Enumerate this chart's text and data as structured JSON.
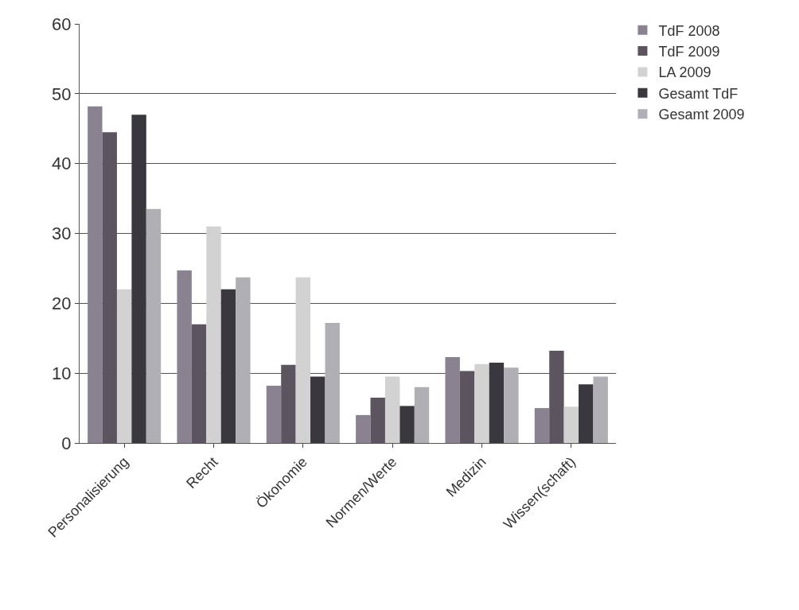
{
  "chart_data": {
    "type": "bar",
    "categories": [
      "Personalisierung",
      "Recht",
      "Ökonomie",
      "Normen/Werte",
      "Medizin",
      "Wissen(schaft)"
    ],
    "series": [
      {
        "name": "TdF 2008",
        "color": "#8a8290",
        "values": [
          48.2,
          24.7,
          8.2,
          4,
          12.3,
          5
        ]
      },
      {
        "name": "TdF 2009",
        "color": "#5c5560",
        "values": [
          44.5,
          17,
          11.2,
          6.5,
          10.3,
          13.2
        ]
      },
      {
        "name": "LA 2009",
        "color": "#d2d2d2",
        "values": [
          22,
          31,
          23.7,
          9.5,
          11.3,
          5.2
        ]
      },
      {
        "name": "Gesamt TdF",
        "color": "#3a383e",
        "values": [
          47,
          22,
          9.5,
          5.3,
          11.5,
          8.4
        ]
      },
      {
        "name": "Gesamt 2009",
        "color": "#b0b0b4",
        "values": [
          33.5,
          23.7,
          17.2,
          8,
          10.8,
          9.5
        ]
      }
    ],
    "ylim": [
      0,
      60
    ],
    "yticks": [
      0,
      10,
      20,
      30,
      40,
      50,
      60
    ],
    "grid": "y",
    "legend": "top right"
  }
}
